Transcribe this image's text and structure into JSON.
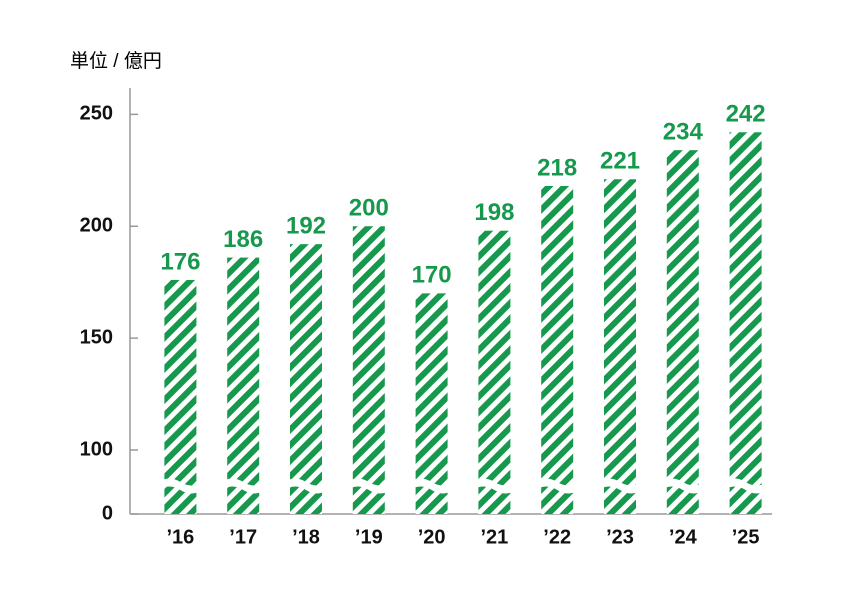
{
  "chart_data": {
    "type": "bar",
    "unit_label": "単位 / 億円",
    "categories": [
      "’16",
      "’17",
      "’18",
      "’19",
      "’20",
      "’21",
      "’22",
      "’23",
      "’24",
      "’25"
    ],
    "values": [
      176,
      186,
      192,
      200,
      170,
      198,
      218,
      221,
      234,
      242
    ],
    "color": "#16994c",
    "label_color": "#16994c",
    "ylim": [
      0,
      260
    ],
    "yticks": [
      0,
      100,
      150,
      200,
      250
    ],
    "axis_break": true
  }
}
